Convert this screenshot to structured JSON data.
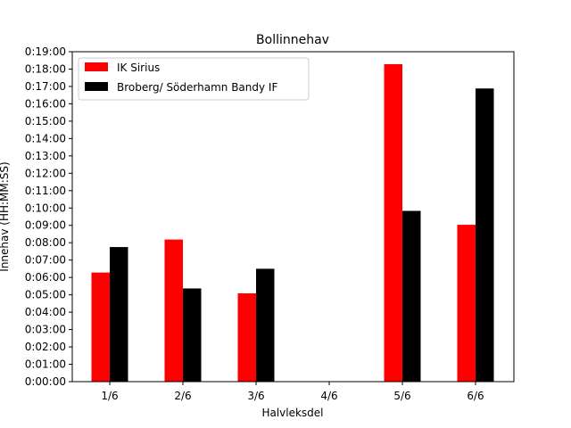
{
  "chart_data": {
    "type": "bar",
    "title": "Bollinnehav",
    "xlabel": "Halvleksdel",
    "ylabel": "Innehav (HH:MM:SS)",
    "categories": [
      "1/6",
      "2/6",
      "3/6",
      "4/6",
      "5/6",
      "6/6"
    ],
    "y_unit": "seconds",
    "ylim": [
      0,
      1140
    ],
    "y_ticks": [
      {
        "value": 0,
        "label": "0:00:00"
      },
      {
        "value": 60,
        "label": "0:01:00"
      },
      {
        "value": 120,
        "label": "0:02:00"
      },
      {
        "value": 180,
        "label": "0:03:00"
      },
      {
        "value": 240,
        "label": "0:04:00"
      },
      {
        "value": 300,
        "label": "0:05:00"
      },
      {
        "value": 360,
        "label": "0:06:00"
      },
      {
        "value": 420,
        "label": "0:07:00"
      },
      {
        "value": 480,
        "label": "0:08:00"
      },
      {
        "value": 540,
        "label": "0:09:00"
      },
      {
        "value": 600,
        "label": "0:10:00"
      },
      {
        "value": 660,
        "label": "0:11:00"
      },
      {
        "value": 720,
        "label": "0:12:00"
      },
      {
        "value": 780,
        "label": "0:13:00"
      },
      {
        "value": 840,
        "label": "0:14:00"
      },
      {
        "value": 900,
        "label": "0:15:00"
      },
      {
        "value": 960,
        "label": "0:16:00"
      },
      {
        "value": 1020,
        "label": "0:17:00"
      },
      {
        "value": 1080,
        "label": "0:18:00"
      },
      {
        "value": 1140,
        "label": "0:19:00"
      }
    ],
    "series": [
      {
        "name": "IK Sirius",
        "color": "#ff0000",
        "values": [
          377,
          491,
          305,
          0,
          1097,
          542
        ]
      },
      {
        "name": "Broberg/ Söderhamn Bandy IF",
        "color": "#000000",
        "values": [
          465,
          322,
          390,
          0,
          590,
          1013
        ]
      }
    ],
    "legend": "top-left",
    "grid": false
  }
}
